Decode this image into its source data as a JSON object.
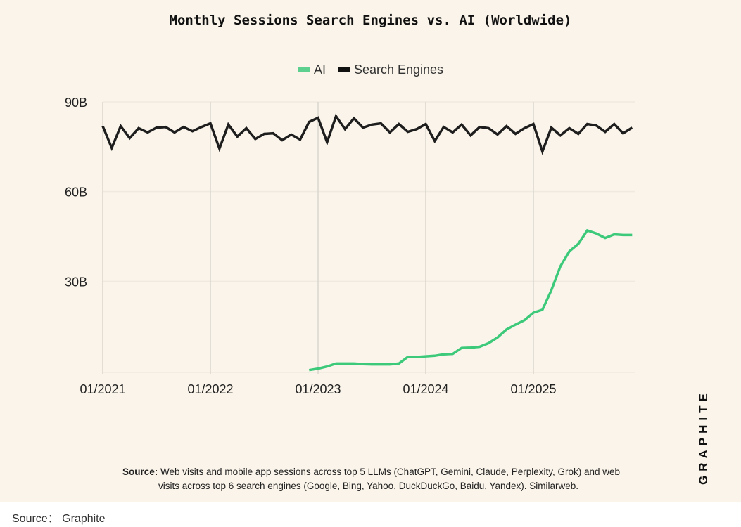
{
  "title": "Monthly Sessions Search Engines vs. AI (Worldwide)",
  "source_note": {
    "label": "Source:",
    "line1": "Web visits and mobile app sessions across top 5 LLMs (ChatGPT, Gemini, Claude, Perplexity, Grok) and web",
    "line2": "visits across top 6 search engines (Google, Bing, Yahoo, DuckDuckGo, Baidu, Yandex). Similarweb."
  },
  "logo": "GRAPHITE",
  "credit": "Source：  Graphite",
  "chart_data": {
    "type": "line",
    "title": "Monthly Sessions Search Engines vs. AI (Worldwide)",
    "xlabel": "",
    "ylabel": "",
    "ylim": [
      0,
      90
    ],
    "yticks": [
      {
        "v": 30,
        "label": "30B"
      },
      {
        "v": 60,
        "label": "60B"
      },
      {
        "v": 90,
        "label": "90B"
      }
    ],
    "xticks": [
      {
        "i": 0,
        "label": "01/2021"
      },
      {
        "i": 12,
        "label": "01/2022"
      },
      {
        "i": 24,
        "label": "01/2023"
      },
      {
        "i": 36,
        "label": "01/2024"
      },
      {
        "i": 48,
        "label": "01/2025"
      }
    ],
    "x_range": "01/2021 - 12/2025 (monthly)",
    "legend_position": "top-center",
    "grid": true,
    "series": [
      {
        "name": "AI",
        "color": "#3DC97A",
        "start_index": 23,
        "values": [
          0.3,
          0.8,
          1.5,
          2.5,
          2.5,
          2.5,
          2.3,
          2.2,
          2.2,
          2.2,
          2.5,
          4.7,
          4.7,
          4.9,
          5.1,
          5.6,
          5.7,
          7.7,
          7.8,
          8.1,
          9.3,
          11.2,
          13.9,
          15.5,
          17.0,
          19.5,
          20.5,
          27.0,
          35.0,
          40.0,
          42.5,
          47.0,
          46.0,
          44.5,
          45.7,
          45.5,
          45.5
        ]
      },
      {
        "name": "Search Engines",
        "color": "#1E1E1E",
        "start_index": 0,
        "values": [
          81.9,
          74.6,
          81.9,
          77.9,
          81.2,
          79.8,
          81.4,
          81.6,
          79.8,
          81.6,
          80.2,
          81.6,
          82.8,
          74.4,
          82.4,
          78.4,
          81.2,
          77.6,
          79.3,
          79.5,
          77.2,
          79.1,
          77.4,
          83.3,
          84.7,
          76.5,
          85.2,
          80.9,
          84.5,
          81.4,
          82.4,
          82.8,
          79.8,
          82.6,
          80.0,
          80.9,
          82.6,
          76.9,
          81.6,
          79.8,
          82.4,
          78.8,
          81.6,
          81.2,
          79.1,
          81.9,
          79.3,
          81.2,
          82.6,
          73.4,
          81.4,
          78.8,
          81.2,
          79.3,
          82.6,
          82.1,
          80.0,
          82.6,
          79.5,
          81.4
        ]
      }
    ]
  }
}
